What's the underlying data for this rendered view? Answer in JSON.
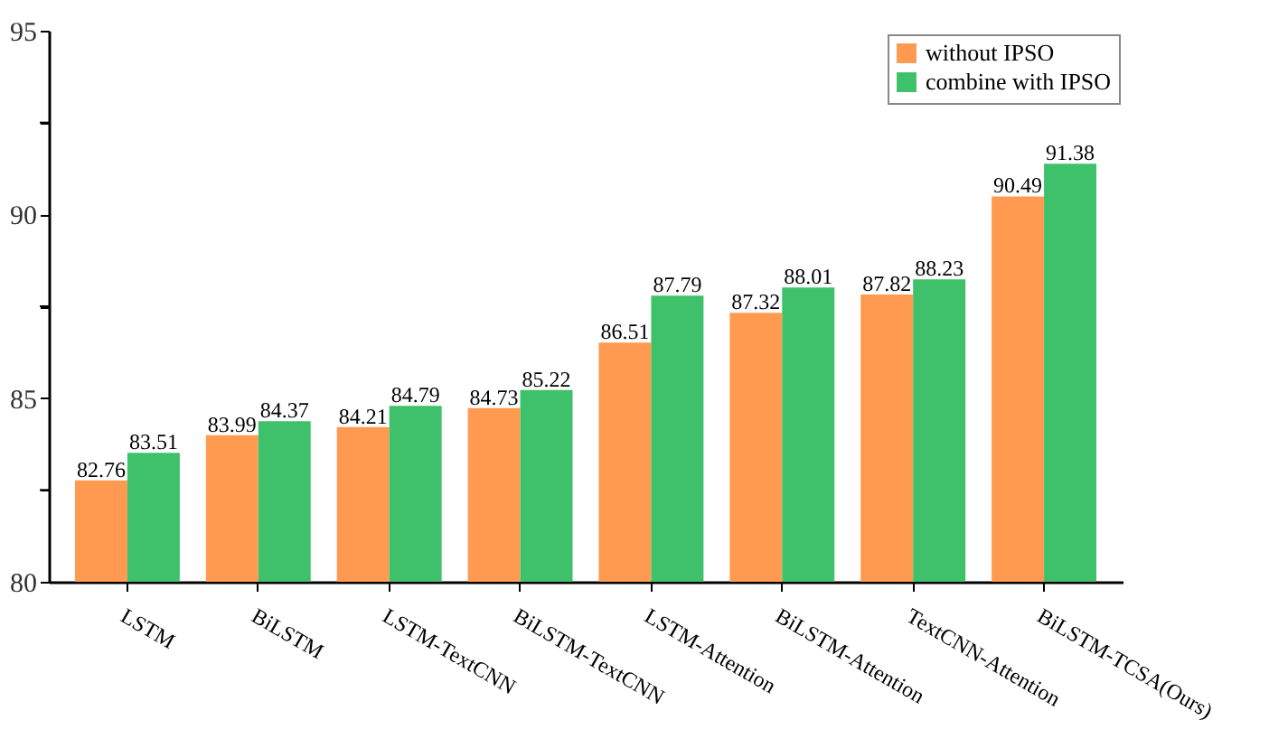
{
  "chart_data": {
    "type": "bar",
    "categories": [
      "LSTM",
      "BiLSTM",
      "LSTM-TextCNN",
      "BiLSTM-TextCNN",
      "LSTM-Attention",
      "BiLSTM-Attention",
      "TextCNN-Attention",
      "BiLSTM-TCSA(Ours)"
    ],
    "series": [
      {
        "name": "without IPSO",
        "color": "#ff9a50",
        "values": [
          82.76,
          83.99,
          84.21,
          84.73,
          86.51,
          87.32,
          87.82,
          90.49
        ]
      },
      {
        "name": "combine with IPSO",
        "color": "#3fc06a",
        "values": [
          83.51,
          84.37,
          84.79,
          85.22,
          87.79,
          88.01,
          88.23,
          91.38
        ]
      }
    ],
    "ylim": [
      80,
      95
    ],
    "yticks": [
      80,
      {
        "value": 82.5,
        "label": null
      },
      85,
      {
        "value": 87.5,
        "label": null
      },
      90,
      {
        "value": 92.5,
        "label": null
      },
      95
    ],
    "data_labels": true,
    "legend": "top right",
    "grid": false
  }
}
